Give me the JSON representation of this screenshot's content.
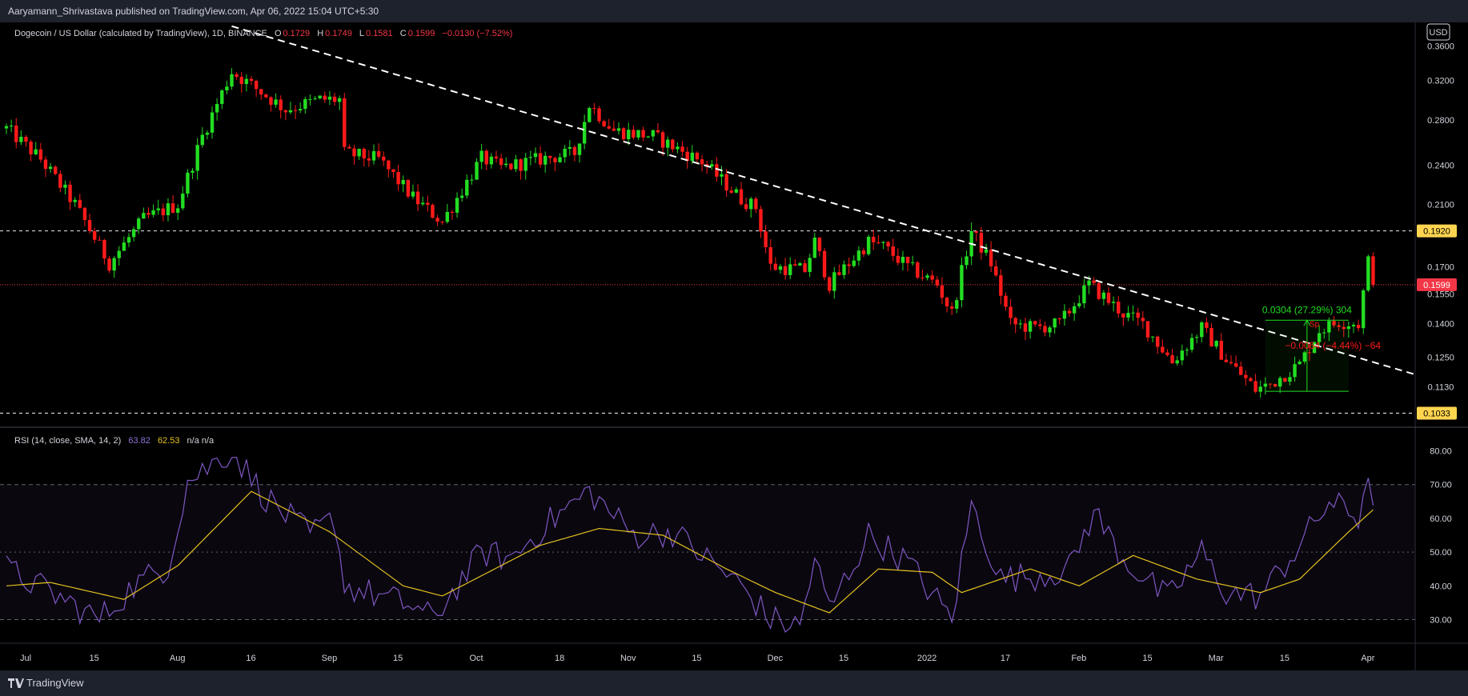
{
  "publisher": {
    "text": "Aaryamann_Shrivastava published on TradingView.com, Apr 06, 2022 15:04 UTC+5:30"
  },
  "footer": {
    "brand": "TradingView"
  },
  "legend": {
    "symbol": "Dogecoin / US Dollar (calculated by TradingView), 1D, BINANCE",
    "o_label": "O",
    "o_val": "0.1729",
    "h_label": "H",
    "h_val": "0.1749",
    "l_label": "L",
    "l_val": "0.1581",
    "c_label": "C",
    "c_val": "0.1599",
    "change": "−0.0130 (−7.52%)"
  },
  "currency": "USD",
  "rsi_legend": {
    "label": "RSI (14, close, SMA, 14, 2)",
    "rsi_val": "63.82",
    "sma_val": "62.53",
    "na": "n/a n/a"
  },
  "colors": {
    "background": "#000000",
    "panel_bg": "#1e222d",
    "up": "#22dd22",
    "down": "#ff1a1a",
    "rsi": "#7e57c2",
    "rsi_sma": "#e5c21e",
    "level_marker": "#ffd54f",
    "last_price_bg": "#f23645"
  },
  "chart_data": [
    {
      "type": "candlestick",
      "title": "Dogecoin / US Dollar (calculated by TradingView), 1D, BINANCE",
      "y_scale": "log",
      "ylim": [
        0.0985,
        0.39
      ],
      "y_ticks": [
        "0.3600",
        "0.3200",
        "0.2800",
        "0.2400",
        "0.2100",
        "0.1700",
        "0.1550",
        "0.1400",
        "0.1250",
        "0.1130"
      ],
      "x_ticks": [
        "Jul",
        "15",
        "Aug",
        "16",
        "Sep",
        "15",
        "Oct",
        "18",
        "Nov",
        "15",
        "Dec",
        "15",
        "2022",
        "17",
        "Feb",
        "15",
        "Mar",
        "15",
        "Apr"
      ],
      "date_range": [
        "2021-07-01",
        "2022-04-06"
      ],
      "horizontal_levels": [
        0.192,
        0.1033
      ],
      "level_labels": [
        "0.1920",
        "0.1033"
      ],
      "last_price": 0.1599,
      "last_price_label": "0.1599",
      "trendline": {
        "from": [
          "2021-08-16",
          0.385
        ],
        "to": [
          "2022-04-15",
          0.1176
        ],
        "style": "dashed"
      },
      "measure_long": {
        "label": "0.0304 (27.29%) 304",
        "from_price": 0.1113,
        "to_price": 0.1417
      },
      "measure_short": {
        "label": "−0.0064 (−4.44%) −64",
        "extra": "Sp"
      },
      "anchors": [
        [
          "2021-07-01",
          0.272
        ],
        [
          "2021-07-08",
          0.245
        ],
        [
          "2021-07-15",
          0.21
        ],
        [
          "2021-07-22",
          0.172
        ],
        [
          "2021-07-29",
          0.2
        ],
        [
          "2021-08-05",
          0.21
        ],
        [
          "2021-08-10",
          0.265
        ],
        [
          "2021-08-16",
          0.33
        ],
        [
          "2021-08-20",
          0.315
        ],
        [
          "2021-08-27",
          0.29
        ],
        [
          "2021-09-03",
          0.3
        ],
        [
          "2021-09-07",
          0.3
        ],
        [
          "2021-09-08",
          0.25
        ],
        [
          "2021-09-15",
          0.245
        ],
        [
          "2021-09-22",
          0.215
        ],
        [
          "2021-09-28",
          0.198
        ],
        [
          "2021-10-06",
          0.246
        ],
        [
          "2021-10-10",
          0.238
        ],
        [
          "2021-10-18",
          0.245
        ],
        [
          "2021-10-25",
          0.25
        ],
        [
          "2021-10-28",
          0.295
        ],
        [
          "2021-11-02",
          0.27
        ],
        [
          "2021-11-10",
          0.265
        ],
        [
          "2021-11-20",
          0.243
        ],
        [
          "2021-11-28",
          0.214
        ],
        [
          "2021-12-01",
          0.208
        ],
        [
          "2021-12-04",
          0.17
        ],
        [
          "2021-12-11",
          0.168
        ],
        [
          "2021-12-13",
          0.185
        ],
        [
          "2021-12-16",
          0.16
        ],
        [
          "2021-12-24",
          0.185
        ],
        [
          "2021-12-27",
          0.182
        ],
        [
          "2022-01-01",
          0.17
        ],
        [
          "2022-01-07",
          0.16
        ],
        [
          "2022-01-10",
          0.145
        ],
        [
          "2022-01-14",
          0.192
        ],
        [
          "2022-01-18",
          0.172
        ],
        [
          "2022-01-22",
          0.14
        ],
        [
          "2022-01-27",
          0.138
        ],
        [
          "2022-02-01",
          0.14
        ],
        [
          "2022-02-07",
          0.16
        ],
        [
          "2022-02-14",
          0.145
        ],
        [
          "2022-02-18",
          0.14
        ],
        [
          "2022-02-24",
          0.123
        ],
        [
          "2022-03-02",
          0.138
        ],
        [
          "2022-03-07",
          0.124
        ],
        [
          "2022-03-13",
          0.112
        ],
        [
          "2022-03-16",
          0.114
        ],
        [
          "2022-03-22",
          0.122
        ],
        [
          "2022-03-26",
          0.137
        ],
        [
          "2022-03-30",
          0.141
        ],
        [
          "2022-04-03",
          0.14
        ],
        [
          "2022-04-05",
          0.173
        ],
        [
          "2022-04-06",
          0.16
        ]
      ]
    },
    {
      "type": "line",
      "title": "RSI (14, close, SMA, 14, 2)",
      "ylim": [
        23,
        87
      ],
      "y_ticks": [
        80,
        70,
        60,
        50,
        40,
        30
      ],
      "band": [
        30,
        70
      ],
      "midline": 50,
      "series": [
        {
          "name": "RSI",
          "points": [
            [
              "2021-07-01",
              45
            ],
            [
              "2021-07-10",
              38
            ],
            [
              "2021-07-20",
              30
            ],
            [
              "2021-07-27",
              40
            ],
            [
              "2021-08-03",
              46
            ],
            [
              "2021-08-07",
              71
            ],
            [
              "2021-08-16",
              80
            ],
            [
              "2021-08-23",
              66
            ],
            [
              "2021-09-01",
              55
            ],
            [
              "2021-09-06",
              60
            ],
            [
              "2021-09-08",
              40
            ],
            [
              "2021-09-22",
              34
            ],
            [
              "2021-09-26",
              30
            ],
            [
              "2021-10-06",
              50
            ],
            [
              "2021-10-12",
              48
            ],
            [
              "2021-10-19",
              58
            ],
            [
              "2021-10-28",
              68
            ],
            [
              "2021-11-06",
              55
            ],
            [
              "2021-11-14",
              56
            ],
            [
              "2021-11-28",
              40
            ],
            [
              "2021-12-04",
              30
            ],
            [
              "2021-12-10",
              28
            ],
            [
              "2021-12-13",
              48
            ],
            [
              "2021-12-16",
              33
            ],
            [
              "2021-12-24",
              55
            ],
            [
              "2022-01-01",
              47
            ],
            [
              "2022-01-10",
              30
            ],
            [
              "2022-01-14",
              64
            ],
            [
              "2022-01-20",
              42
            ],
            [
              "2022-01-27",
              43
            ],
            [
              "2022-02-03",
              45
            ],
            [
              "2022-02-08",
              62
            ],
            [
              "2022-02-14",
              48
            ],
            [
              "2022-02-23",
              36
            ],
            [
              "2022-03-02",
              50
            ],
            [
              "2022-03-07",
              38
            ],
            [
              "2022-03-14",
              37
            ],
            [
              "2022-03-22",
              52
            ],
            [
              "2022-03-28",
              65
            ],
            [
              "2022-04-03",
              60
            ],
            [
              "2022-04-05",
              75
            ],
            [
              "2022-04-06",
              63.82
            ]
          ]
        },
        {
          "name": "RSI SMA",
          "points": [
            [
              "2021-07-01",
              40
            ],
            [
              "2021-07-10",
              41
            ],
            [
              "2021-07-25",
              36
            ],
            [
              "2021-08-05",
              46
            ],
            [
              "2021-08-20",
              68
            ],
            [
              "2021-09-05",
              56
            ],
            [
              "2021-09-20",
              40
            ],
            [
              "2021-09-28",
              37
            ],
            [
              "2021-10-18",
              52
            ],
            [
              "2021-10-30",
              57
            ],
            [
              "2021-11-12",
              55
            ],
            [
              "2021-11-25",
              45
            ],
            [
              "2021-12-05",
              38
            ],
            [
              "2021-12-16",
              32
            ],
            [
              "2021-12-26",
              45
            ],
            [
              "2022-01-06",
              44
            ],
            [
              "2022-01-12",
              38
            ],
            [
              "2022-01-26",
              45
            ],
            [
              "2022-02-05",
              40
            ],
            [
              "2022-02-16",
              49
            ],
            [
              "2022-03-01",
              42
            ],
            [
              "2022-03-14",
              38
            ],
            [
              "2022-03-22",
              42
            ],
            [
              "2022-04-01",
              56
            ],
            [
              "2022-04-06",
              62.53
            ]
          ]
        }
      ]
    }
  ]
}
